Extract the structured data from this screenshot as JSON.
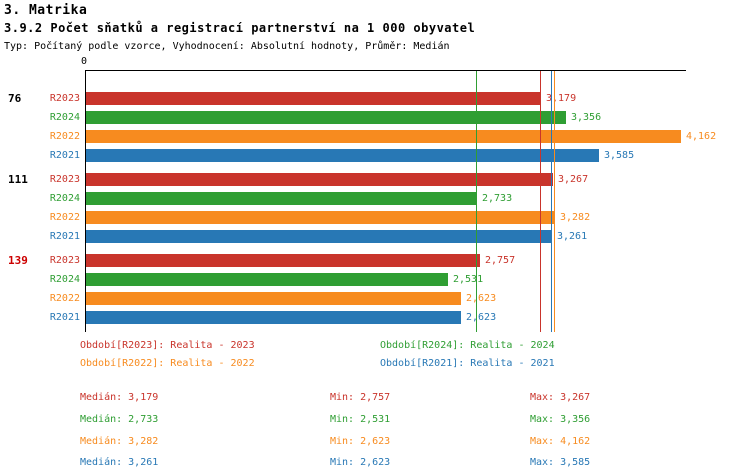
{
  "header": {
    "title": "3. Matrika",
    "subtitle": "3.9.2 Počet sňatků a registrací partnerství na 1 000 obyvatel",
    "meta": "Typ: Počítaný podle vzorce, Vyhodnocení: Absolutní hodnoty, Průměr: Medián"
  },
  "colors": {
    "R2023": "#c9342b",
    "R2024": "#2f9e33",
    "R2022": "#f78b1f",
    "R2021": "#2878b5",
    "alert_group": "#cc0000",
    "axis": "#000000"
  },
  "chart_data": {
    "type": "bar",
    "orientation": "horizontal",
    "x_origin_label": "0",
    "xlim": [
      0,
      4.2
    ],
    "grid": false,
    "series_order": [
      "R2023",
      "R2024",
      "R2022",
      "R2021"
    ],
    "groups": [
      {
        "label": "76",
        "label_color": "#000000",
        "bars": [
          {
            "series": "R2023",
            "value": 3.179,
            "display": "3,179"
          },
          {
            "series": "R2024",
            "value": 3.356,
            "display": "3,356"
          },
          {
            "series": "R2022",
            "value": 4.162,
            "display": "4,162"
          },
          {
            "series": "R2021",
            "value": 3.585,
            "display": "3,585"
          }
        ]
      },
      {
        "label": "111",
        "label_color": "#000000",
        "bars": [
          {
            "series": "R2023",
            "value": 3.267,
            "display": "3,267"
          },
          {
            "series": "R2024",
            "value": 2.733,
            "display": "2,733"
          },
          {
            "series": "R2022",
            "value": 3.282,
            "display": "3,282"
          },
          {
            "series": "R2021",
            "value": 3.261,
            "display": "3,261"
          }
        ]
      },
      {
        "label": "139",
        "label_color": "#cc0000",
        "bars": [
          {
            "series": "R2023",
            "value": 2.757,
            "display": "2,757"
          },
          {
            "series": "R2024",
            "value": 2.531,
            "display": "2,531"
          },
          {
            "series": "R2022",
            "value": 2.623,
            "display": "2,623"
          },
          {
            "series": "R2021",
            "value": 2.623,
            "display": "2,623"
          }
        ]
      }
    ],
    "medians": {
      "R2023": 3.179,
      "R2024": 2.733,
      "R2022": 3.282,
      "R2021": 3.261
    }
  },
  "legend": [
    {
      "series": "R2023",
      "label": "Období[R2023]: Realita - 2023"
    },
    {
      "series": "R2024",
      "label": "Období[R2024]: Realita - 2024"
    },
    {
      "series": "R2022",
      "label": "Období[R2022]: Realita - 2022"
    },
    {
      "series": "R2021",
      "label": "Období[R2021]: Realita - 2021"
    }
  ],
  "stats": [
    {
      "series": "R2023",
      "median": "Medián: 3,179",
      "min": "Min: 2,757",
      "max": "Max: 3,267"
    },
    {
      "series": "R2024",
      "median": "Medián: 2,733",
      "min": "Min: 2,531",
      "max": "Max: 3,356"
    },
    {
      "series": "R2022",
      "median": "Medián: 3,282",
      "min": "Min: 2,623",
      "max": "Max: 4,162"
    },
    {
      "series": "R2021",
      "median": "Medián: 3,261",
      "min": "Min: 2,623",
      "max": "Max: 3,585"
    }
  ]
}
